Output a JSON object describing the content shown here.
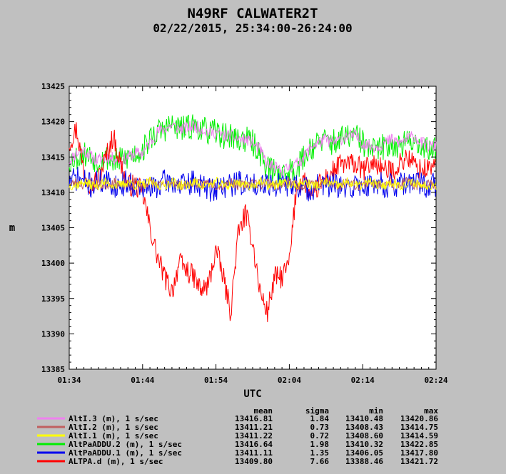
{
  "chart_data": {
    "type": "line",
    "title": "N49RF CALWATER2T",
    "subtitle": "02/22/2015, 25:34:00-26:24:00",
    "xlabel": "UTC",
    "ylabel": "m",
    "ylim": [
      13385,
      13425
    ],
    "yticks": [
      13385,
      13390,
      13395,
      13400,
      13405,
      13410,
      13415,
      13420,
      13425
    ],
    "xticks": [
      "01:34",
      "01:44",
      "01:54",
      "02:04",
      "02:14",
      "02:24"
    ],
    "grid": false,
    "legend_placement": "bottom",
    "stats_headers": [
      "mean",
      "sigma",
      "min",
      "max"
    ],
    "series": [
      {
        "name": "AltI.3 (m), 1 s/sec",
        "color": "#ee82ee",
        "mean": "13416.81",
        "sigma": "1.84",
        "min": "13410.48",
        "max": "13420.86",
        "values": [
          13414.5,
          13415.5,
          13416.0,
          13415.0,
          13414.5,
          13415.0,
          13414.8,
          13414.5,
          13415.0,
          13415.5,
          13415.5,
          13417.0,
          13418.5,
          13419.0,
          13419.5,
          13419.0,
          13419.0,
          13419.5,
          13419.0,
          13418.5,
          13418.5,
          13418.0,
          13418.0,
          13417.5,
          13417.5,
          13417.0,
          13416.0,
          13414.0,
          13413.5,
          13413.0,
          13413.5,
          13414.0,
          13415.0,
          13416.5,
          13417.0,
          13417.5,
          13417.0,
          13417.5,
          13418.0,
          13418.0,
          13417.0,
          13416.5,
          13416.5,
          13417.0,
          13417.5,
          13417.0,
          13417.5,
          13418.0,
          13417.0,
          13416.5,
          13416.5
        ],
        "noise": 0.9,
        "seed": 11
      },
      {
        "name": "AltI.2 (m), 1 s/sec",
        "color": "#c06060",
        "mean": "13411.21",
        "sigma": "0.73",
        "min": "13408.43",
        "max": "13414.75",
        "values": [
          13411.0,
          13411.5,
          13411.0,
          13411.5,
          13411.0,
          13411.0,
          13411.5,
          13411.0,
          13411.0,
          13411.5,
          13411.0,
          13411.5,
          13411.0,
          13411.0,
          13411.5,
          13411.0,
          13411.0,
          13411.5,
          13411.0,
          13411.5,
          13411.0,
          13411.0,
          13411.5,
          13411.0,
          13411.0,
          13411.5,
          13411.0,
          13411.5,
          13411.0,
          13411.0,
          13411.5,
          13411.0,
          13411.0,
          13411.5,
          13411.0,
          13411.5,
          13411.0,
          13411.0,
          13411.5,
          13411.0,
          13411.0,
          13411.5,
          13411.0,
          13411.5,
          13411.0,
          13411.0,
          13411.5,
          13411.0,
          13411.0,
          13411.5,
          13411.0
        ],
        "noise": 0.7,
        "seed": 23
      },
      {
        "name": "AltI.1 (m), 1 s/sec",
        "color": "#ffff00",
        "mean": "13411.22",
        "sigma": "0.72",
        "min": "13408.60",
        "max": "13414.59",
        "values": [
          13411.0,
          13411.0,
          13411.5,
          13411.0,
          13411.0,
          13411.5,
          13411.0,
          13411.0,
          13411.5,
          13411.0,
          13411.0,
          13411.5,
          13411.0,
          13411.0,
          13411.5,
          13411.0,
          13411.0,
          13411.5,
          13411.0,
          13411.0,
          13411.5,
          13411.0,
          13411.0,
          13411.5,
          13411.0,
          13411.0,
          13411.5,
          13411.0,
          13411.0,
          13411.5,
          13411.0,
          13411.0,
          13411.5,
          13411.0,
          13411.0,
          13411.5,
          13411.0,
          13411.0,
          13411.5,
          13411.0,
          13411.0,
          13411.5,
          13411.0,
          13411.0,
          13411.5,
          13411.0,
          13411.0,
          13411.5,
          13411.0,
          13411.0,
          13411.0
        ],
        "noise": 0.7,
        "seed": 37
      },
      {
        "name": "AltPaADDU.2 (m), 1 s/sec",
        "color": "#00ee00",
        "mean": "13416.64",
        "sigma": "1.98",
        "min": "13410.32",
        "max": "13422.85",
        "values": [
          13414.5,
          13415.0,
          13415.5,
          13415.0,
          13414.5,
          13415.0,
          13414.5,
          13414.5,
          13415.0,
          13415.5,
          13416.0,
          13417.5,
          13418.5,
          13419.0,
          13419.5,
          13419.0,
          13419.0,
          13419.5,
          13419.0,
          13418.5,
          13418.5,
          13418.0,
          13418.0,
          13417.5,
          13417.5,
          13417.0,
          13415.5,
          13413.5,
          13413.0,
          13412.5,
          13413.0,
          13413.5,
          13415.0,
          13416.5,
          13417.0,
          13417.5,
          13417.0,
          13417.5,
          13418.0,
          13418.0,
          13417.0,
          13416.0,
          13416.0,
          13416.5,
          13417.0,
          13416.5,
          13417.0,
          13417.5,
          13416.5,
          13416.0,
          13416.0
        ],
        "noise": 1.9,
        "seed": 53
      },
      {
        "name": "AltPaADDU.1 (m), 1 s/sec",
        "color": "#0000ee",
        "mean": "13411.11",
        "sigma": "1.35",
        "min": "13406.05",
        "max": "13417.80",
        "values": [
          13411.5,
          13412.0,
          13411.5,
          13411.0,
          13411.5,
          13411.5,
          13411.0,
          13411.0,
          13411.5,
          13411.0,
          13410.5,
          13410.5,
          13411.0,
          13411.5,
          13411.5,
          13411.0,
          13411.0,
          13411.5,
          13411.0,
          13410.5,
          13410.5,
          13411.0,
          13411.0,
          13411.5,
          13411.0,
          13411.0,
          13411.5,
          13411.5,
          13411.0,
          13411.0,
          13411.0,
          13411.0,
          13410.5,
          13410.5,
          13411.0,
          13411.0,
          13411.0,
          13410.5,
          13410.5,
          13411.0,
          13411.0,
          13411.0,
          13411.5,
          13411.0,
          13411.0,
          13411.0,
          13411.0,
          13411.5,
          13411.0,
          13411.0,
          13411.0
        ],
        "noise": 1.8,
        "seed": 71
      },
      {
        "name": "ALTPA.d (m), 1 s/sec",
        "color": "#ff0000",
        "mean": "13409.80",
        "sigma": "7.66",
        "min": "13388.46",
        "max": "13421.72",
        "values": [
          13417.0,
          13419.0,
          13413.0,
          13411.0,
          13412.0,
          13415.0,
          13418.0,
          13414.0,
          13411.0,
          13411.0,
          13410.0,
          13405.0,
          13401.0,
          13398.0,
          13396.0,
          13400.0,
          13399.0,
          13398.0,
          13396.0,
          13397.0,
          13402.0,
          13398.0,
          13393.0,
          13404.0,
          13407.0,
          13403.0,
          13396.0,
          13393.0,
          13398.0,
          13398.0,
          13400.0,
          13411.0,
          13412.0,
          13409.0,
          13411.0,
          13412.0,
          13413.0,
          13414.0,
          13414.0,
          13414.0,
          13413.0,
          13414.0,
          13414.0,
          13413.0,
          13413.0,
          13414.0,
          13415.0,
          13414.0,
          13413.0,
          13413.5,
          13414.0
        ],
        "noise": 1.6,
        "seed": 97
      }
    ]
  }
}
